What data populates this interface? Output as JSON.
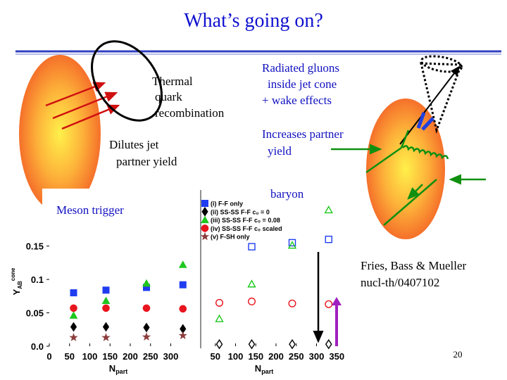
{
  "title": "What’s going on?",
  "annotations": {
    "thermal": [
      "Thermal",
      "quark",
      "recombination"
    ],
    "dilutes": [
      "Dilutes jet",
      "partner yield"
    ],
    "radiated": [
      "Radiated gluons",
      "inside jet cone",
      "+ wake effects"
    ],
    "increases": [
      "Increases partner",
      "yield"
    ]
  },
  "citation": [
    "Fries, Bass & Mueller",
    "nucl-th/0407102"
  ],
  "page_number": "20",
  "chart_data": [
    {
      "type": "scatter",
      "title": "Meson trigger",
      "y_label": "Y",
      "y_label_sub": "AB",
      "y_label_sup": "cone",
      "x_label": "N",
      "x_label_sub": "part",
      "x": [
        60,
        140,
        240,
        330
      ],
      "xlim": [
        0,
        360
      ],
      "xticks": [
        0,
        50,
        100,
        150,
        200,
        250,
        300
      ],
      "ylim": [
        0,
        0.235
      ],
      "yticks": [
        {
          "value": 0,
          "label": "0.0"
        },
        0.05,
        0.1,
        0.15
      ],
      "series": [
        {
          "name": "(i) F-F only",
          "color": "#1f3df0",
          "marker": "square",
          "filled": true,
          "values": [
            0.08,
            0.084,
            0.088,
            0.092
          ]
        },
        {
          "name": "(ii) SS-SS F-F c₀ = 0",
          "color": "#000000",
          "marker": "diamond",
          "filled": true,
          "values": [
            0.029,
            0.029,
            0.028,
            0.026
          ]
        },
        {
          "name": "(iii) SS-SS F-F c₀ = 0.08",
          "color": "#1ec81e",
          "marker": "triangle",
          "filled": true,
          "values": [
            0.046,
            0.068,
            0.094,
            0.122
          ]
        },
        {
          "name": "(iv) SS-SS F-F c₀ scaled",
          "color": "#e8141e",
          "marker": "circle",
          "filled": true,
          "values": [
            0.057,
            0.057,
            0.057,
            0.056
          ]
        },
        {
          "name": "(v) F-SH only",
          "color": "#8c3c3c",
          "marker": "star",
          "filled": true,
          "values": [
            0.013,
            0.013,
            0.014,
            0.016
          ]
        }
      ]
    },
    {
      "type": "scatter",
      "title": "baryon",
      "x_label": "N",
      "x_label_sub": "part",
      "x": [
        60,
        140,
        240,
        330
      ],
      "xlim": [
        0,
        360
      ],
      "xticks": [
        50,
        100,
        150,
        200,
        250,
        300,
        350
      ],
      "ylim": [
        0,
        0.235
      ],
      "series": [
        {
          "color": "#1f3df0",
          "marker": "square",
          "filled": false,
          "values": [
            null,
            0.149,
            0.155,
            0.16
          ]
        },
        {
          "color": "#000000",
          "marker": "diamond",
          "filled": false,
          "values": [
            0.003,
            0.003,
            0.003,
            0.003
          ]
        },
        {
          "color": "#1ec81e",
          "marker": "triangle",
          "filled": false,
          "values": [
            0.041,
            0.093,
            0.151,
            0.204
          ]
        },
        {
          "color": "#e8141e",
          "marker": "circle",
          "filled": false,
          "values": [
            0.065,
            0.067,
            0.064,
            0.063
          ]
        }
      ]
    }
  ]
}
